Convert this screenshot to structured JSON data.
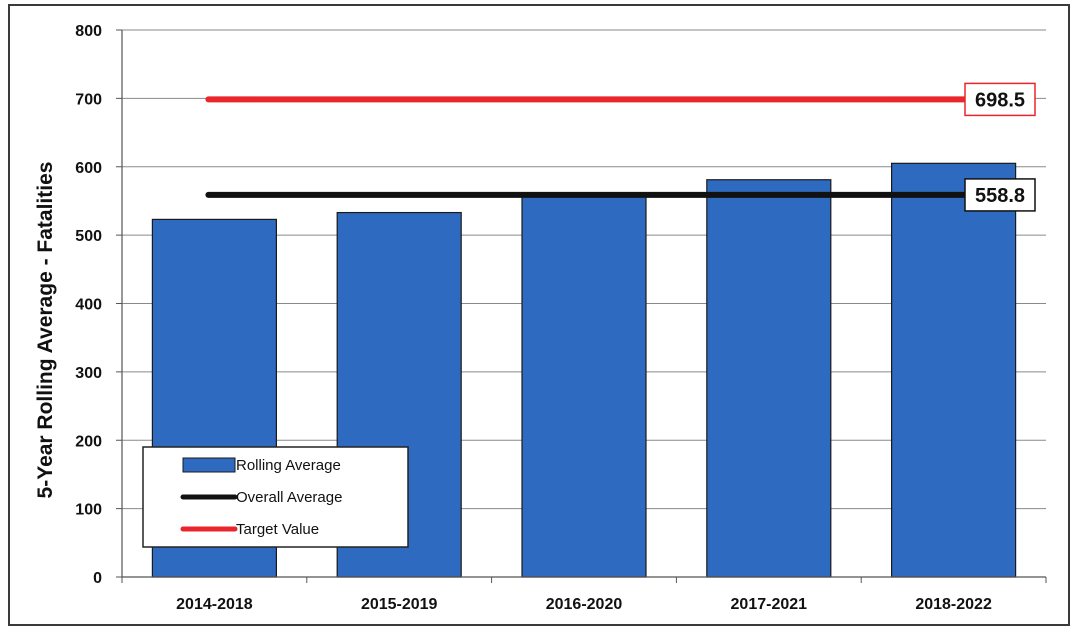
{
  "chart_data": {
    "type": "bar",
    "ylabel": "5-Year Rolling Average - Fatalities",
    "xlabel": "",
    "ylim": [
      0,
      800
    ],
    "yticks": [
      0,
      100,
      200,
      300,
      400,
      500,
      600,
      700,
      800
    ],
    "grid": true,
    "categories": [
      "2014-2018",
      "2015-2019",
      "2016-2020",
      "2017-2021",
      "2018-2022"
    ],
    "series": [
      {
        "name": "Rolling Average",
        "type": "bar",
        "color": "#2e6bc0",
        "values": [
          523,
          533,
          556,
          581,
          605
        ]
      },
      {
        "name": "Overall Average",
        "type": "line",
        "color": "#111111",
        "values": [
          558.8,
          558.8,
          558.8,
          558.8,
          558.8
        ]
      },
      {
        "name": "Target Value",
        "type": "line",
        "color": "#e8262c",
        "values": [
          698.5,
          698.5,
          698.5,
          698.5,
          698.5
        ]
      }
    ],
    "annotations": [
      {
        "text": "698.5",
        "series": "Target Value",
        "border_color": "#e8262c"
      },
      {
        "text": "558.8",
        "series": "Overall Average",
        "border_color": "#111111"
      }
    ],
    "legend_position": "bottom-left"
  }
}
